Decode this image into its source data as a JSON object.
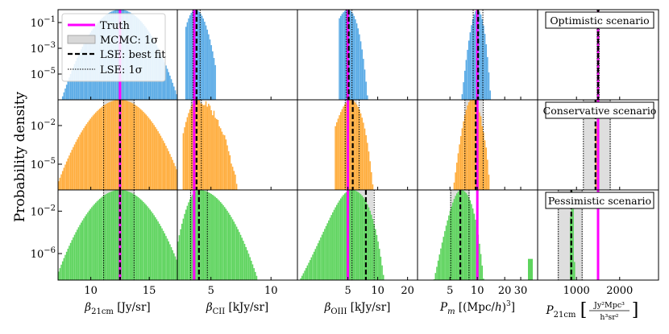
{
  "chart_data": {
    "type": "histogram-grid",
    "ylabel": "Probability density",
    "rows": [
      {
        "scenario": "Optimistic scenario",
        "color": "#5aabe6",
        "yticks": [
          "10^{-1}",
          "10^{-3}",
          "10^{-5}"
        ],
        "ytick_logs": [
          -1,
          -3,
          -5
        ],
        "ylog": [
          -7,
          0
        ]
      },
      {
        "scenario": "Conservative scenario",
        "color": "#ffad3d",
        "yticks": [
          "10^{-2}",
          "10^{-5}"
        ],
        "ytick_logs": [
          -2,
          -5
        ],
        "ylog": [
          -7,
          0
        ]
      },
      {
        "scenario": "Pessimistic scenario",
        "color": "#5ed45e",
        "yticks": [
          "10^{-2}",
          "10^{-6}"
        ],
        "ytick_logs": [
          -2,
          -6
        ],
        "ylog": [
          -8.5,
          0
        ]
      }
    ],
    "columns": [
      {
        "xlabel": "β_21cm [Jy/sr]",
        "xlim": [
          7.2,
          17.4
        ],
        "xticks": [
          {
            "v": 10,
            "t": "10"
          },
          {
            "v": 15,
            "t": "15"
          }
        ],
        "truth": 12.5,
        "hist": [
          {
            "peak_x": 12.5,
            "sl": 0.28,
            "sr": 0.28,
            "lo": 7.2,
            "hi": 17.4,
            "mcmc": [
              null,
              null
            ],
            "lse": [
              null,
              null,
              null
            ]
          },
          {
            "peak_x": 12.5,
            "sl": 0.23,
            "sr": 0.23,
            "lo": 7.2,
            "hi": 17.4,
            "mcmc": [
              11.1,
              13.7
            ],
            "lse": [
              12.5,
              11.1,
              13.7
            ]
          },
          {
            "peak_x": 12.5,
            "sl": 0.28,
            "sr": 0.28,
            "lo": 7.2,
            "hi": 17.4,
            "mcmc": [
              11.1,
              13.7
            ],
            "lse": [
              12.5,
              11.1,
              13.7
            ]
          }
        ]
      },
      {
        "xlabel": "β_CII [kJy/sr]",
        "xlim": [
          2.2,
          12.2
        ],
        "xticks": [
          {
            "v": 5,
            "t": "5"
          },
          {
            "v": 10,
            "t": "10"
          }
        ],
        "truth": 3.6,
        "hist": [
          {
            "peak_x": 3.7,
            "sl": 2.2,
            "sr": 1.55,
            "lo": 2.9,
            "hi": 5.4,
            "mcmc": [
              null,
              null
            ],
            "lse": [
              3.8,
              3.5,
              4.1
            ]
          },
          {
            "peak_x": 3.9,
            "sl": 1.8,
            "sr": 0.6,
            "lo": 2.7,
            "hi": 9.1,
            "mcmc": [
              3.3,
              4.2
            ],
            "lse": [
              3.8,
              3.4,
              4.2
            ]
          },
          {
            "peak_x": 4.0,
            "sl": 1.6,
            "sr": 0.35,
            "lo": 2.2,
            "hi": 12.2,
            "mcmc": [
              3.3,
              4.7
            ],
            "lse": [
              4.0,
              3.3,
              4.7
            ]
          }
        ]
      },
      {
        "xlabel": "β_OIII [kJy/sr]",
        "xlim": [
          1.55,
          25.2
        ],
        "xticks": [
          {
            "v": 5,
            "t": "5"
          },
          {
            "v": 10,
            "t": "10"
          },
          {
            "v": 20,
            "t": "20"
          }
        ],
        "truth": 5.0,
        "hist": [
          {
            "peak_x": 5.0,
            "sl": 0.85,
            "sr": 0.8,
            "lo": 4.1,
            "hi": 8.3,
            "mcmc": [
              null,
              null
            ],
            "lse": [
              5.1,
              4.8,
              5.5
            ]
          },
          {
            "peak_x": 5.3,
            "sl": 0.85,
            "sr": 0.5,
            "lo": 3.7,
            "hi": 15.0,
            "mcmc": [
              4.7,
              6.2
            ],
            "lse": [
              5.6,
              4.7,
              6.5
            ]
          },
          {
            "peak_x": 5.4,
            "sl": 0.6,
            "sr": 0.22,
            "lo": 1.55,
            "hi": 25.2,
            "mcmc": [
              5.0,
              9.0
            ],
            "lse": [
              7.6,
              5.5,
              9.2
            ]
          }
        ]
      },
      {
        "xlabel": "P_m [(Mpc/h)^3]",
        "xlim": [
          2.2,
          46
        ],
        "xticks": [
          {
            "v": 5,
            "t": "5"
          },
          {
            "v": 10,
            "t": "10"
          },
          {
            "v": 20,
            "t": "20"
          },
          {
            "v": 30,
            "t": "30"
          }
        ],
        "truth": 10.0,
        "hist": [
          {
            "peak_x": 10.0,
            "sl": 0.65,
            "sr": 0.42,
            "lo": 5.5,
            "hi": 25.0,
            "mcmc": [
              null,
              null
            ],
            "lse": [
              10.2,
              9.0,
              11.5
            ]
          },
          {
            "peak_x": 8.6,
            "sl": 0.7,
            "sr": 0.25,
            "lo": 3.0,
            "hi": 30.0,
            "mcmc": [
              7.3,
              11.5
            ],
            "lse": [
              9.6,
              7.3,
              11.6
            ]
          },
          {
            "peak_x": 6.6,
            "sl": 0.8,
            "sr": 0.32,
            "lo": 2.2,
            "hi": 33.0,
            "mcmc": [
              5.0,
              8.3
            ],
            "lse": [
              6.5,
              5.1,
              8.1
            ]
          }
        ]
      },
      {
        "xlabel": "P_21cm [Jy^2 Mpc^3 / h^3 sr^2]",
        "xlim": [
          100,
          2900
        ],
        "xticks": [
          {
            "v": 1000,
            "t": "1000"
          },
          {
            "v": 2000,
            "t": "2000"
          }
        ],
        "truth": 1500,
        "hist": [
          {
            "peak_x": 1500,
            "sl": 0.035,
            "sr": 0.035,
            "lo": 1200,
            "hi": 1800,
            "mcmc": [
              null,
              null
            ],
            "lse": [
              1500,
              1480,
              1525
            ]
          },
          {
            "peak_x": 1480,
            "sl": 0.0027,
            "sr": 0.0019,
            "lo": 180,
            "hi": 2900,
            "mcmc": [
              1160,
              1800
            ],
            "lse": [
              1440,
              1160,
              1780
            ]
          },
          {
            "peak_x": 900,
            "sl": 0.0018,
            "sr": 0.0022,
            "lo": 500,
            "hi": 2900,
            "mcmc": [
              560,
              1150
            ],
            "lse": [
              880,
              580,
              1130
            ]
          }
        ]
      }
    ],
    "legend": {
      "position": "top-left",
      "entries": [
        {
          "label": "Truth",
          "style": "magenta-solid"
        },
        {
          "label": "MCMC: 1σ",
          "style": "gray-band"
        },
        {
          "label": "LSE: best fit",
          "style": "black-dashed"
        },
        {
          "label": "LSE: 1σ",
          "style": "black-dotted"
        }
      ]
    },
    "colors": {
      "truth": "#ff00ff",
      "mcmc_band": "#d8d8d8",
      "lse": "#000000"
    }
  }
}
